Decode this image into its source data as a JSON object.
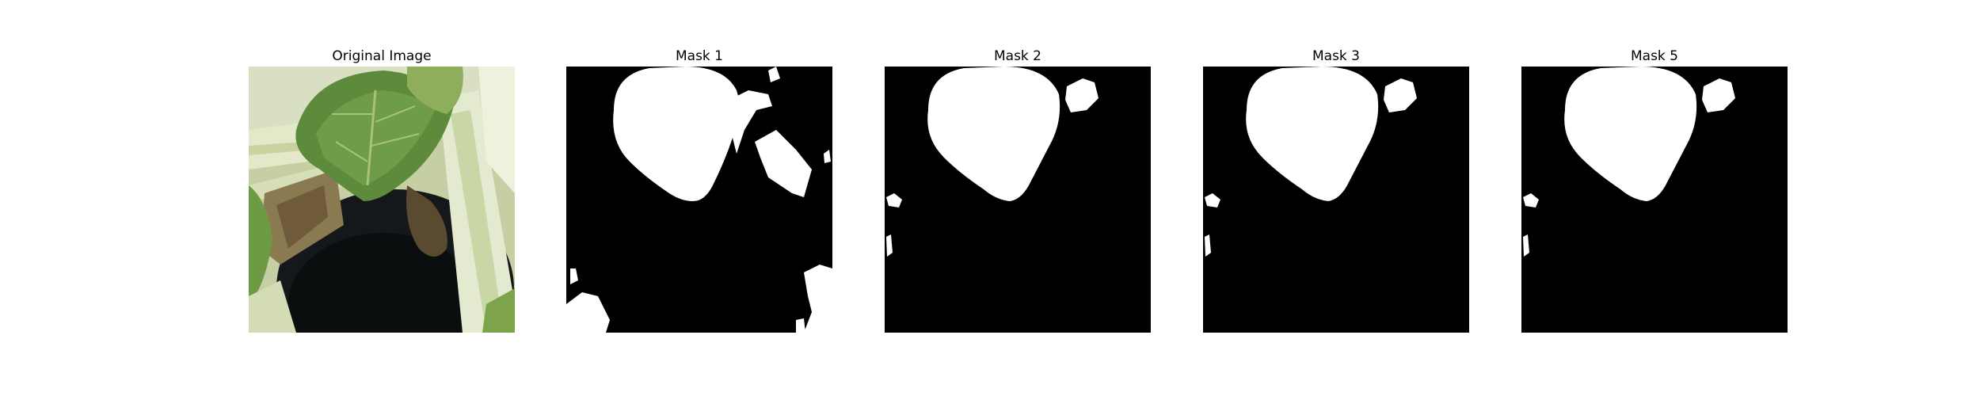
{
  "figure": {
    "panels": [
      {
        "title": "Original Image",
        "kind": "photo"
      },
      {
        "title": "Mask 1",
        "kind": "mask"
      },
      {
        "title": "Mask 2",
        "kind": "mask"
      },
      {
        "title": "Mask 3",
        "kind": "mask"
      },
      {
        "title": "Mask 5",
        "kind": "mask"
      }
    ]
  },
  "colors": {
    "mask_background": "#000000",
    "mask_foreground": "#ffffff",
    "leaf_green": "#5e8a3c",
    "stem_pale": "#d6dfb8",
    "pot_dark": "#14181a",
    "soil_brown": "#6f5a3a"
  }
}
